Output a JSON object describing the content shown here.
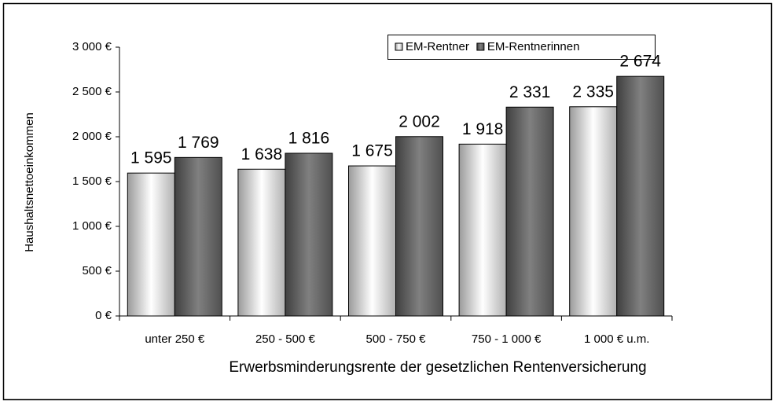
{
  "chart_data": {
    "type": "bar",
    "x_label": "Erwerbsminderungsrente der gesetzlichen Rentenversicherung",
    "y_label": "Haushaltsnettoeinkommen",
    "categories": [
      "unter 250 €",
      "250 - 500 €",
      "500 - 750 €",
      "750 - 1 000 €",
      "1 000 € u.m."
    ],
    "series": [
      {
        "name": "EM-Rentner",
        "color": "#ffffff",
        "values": [
          1595,
          1638,
          1675,
          1918,
          2335
        ],
        "value_labels": [
          "1 595",
          "1 638",
          "1 675",
          "1 918",
          "2 335"
        ]
      },
      {
        "name": "EM-Rentnerinnen",
        "color": "#808080",
        "values": [
          1769,
          1816,
          2002,
          2331,
          2674
        ],
        "value_labels": [
          "1 769",
          "1 816",
          "2 002",
          "2 331",
          "2 674"
        ]
      }
    ],
    "ylim": [
      0,
      3000
    ],
    "yticks": [
      {
        "value": 0,
        "label": "0 €"
      },
      {
        "value": 500,
        "label": "500 €"
      },
      {
        "value": 1000,
        "label": "1 000 €"
      },
      {
        "value": 1500,
        "label": "1 500 €"
      },
      {
        "value": 2000,
        "label": "2 000 €"
      },
      {
        "value": 2500,
        "label": "2 500 €"
      },
      {
        "value": 3000,
        "label": "3 000 €"
      }
    ],
    "grid": false,
    "legend": "top"
  }
}
